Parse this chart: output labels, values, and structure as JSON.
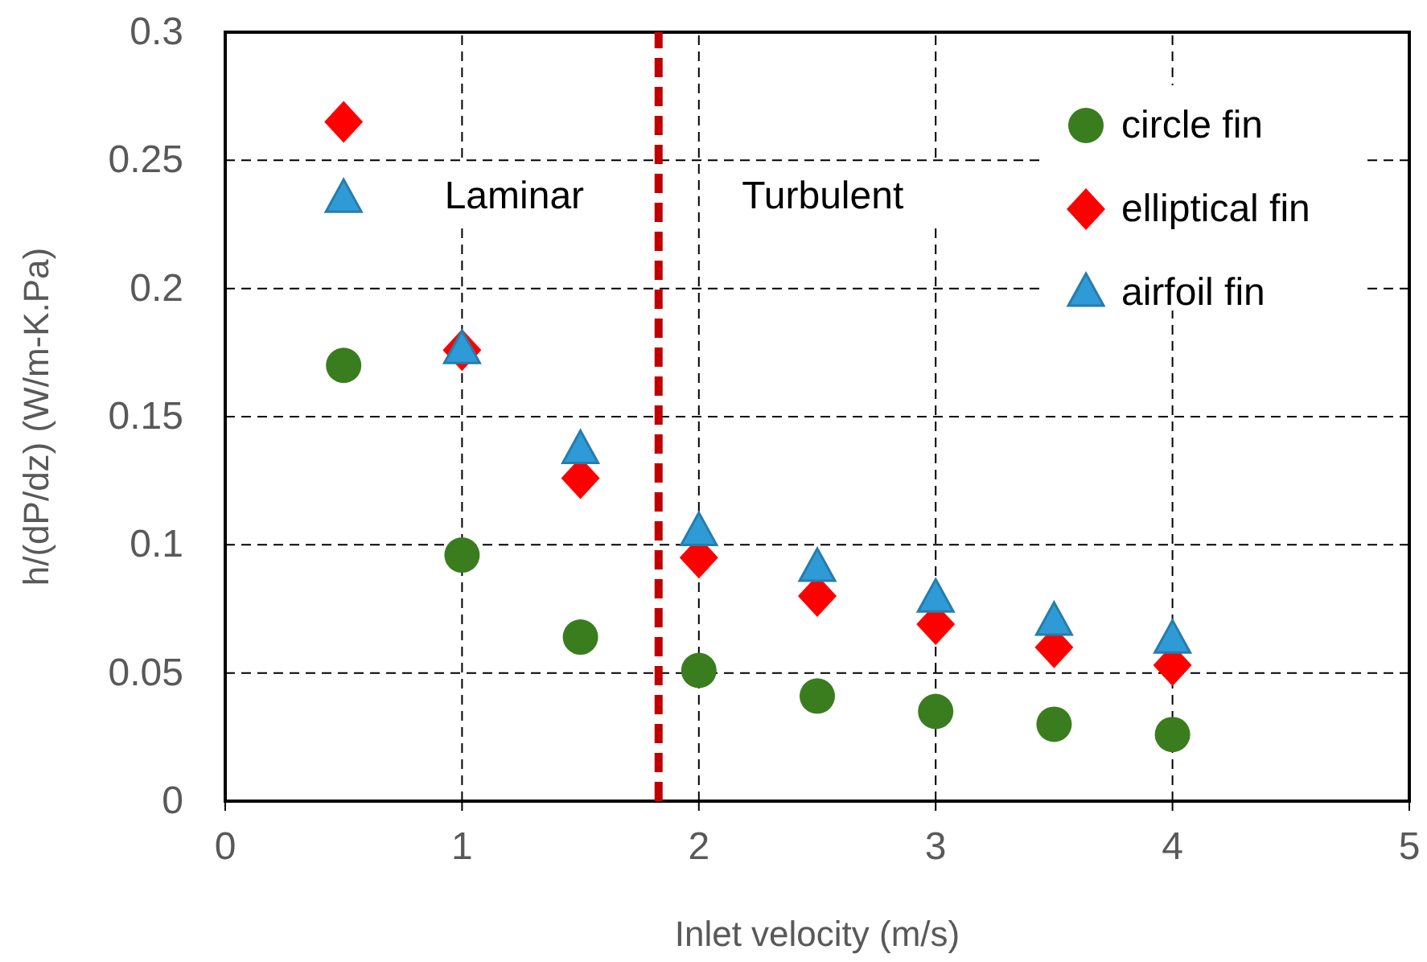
{
  "chart_data": {
    "type": "scatter",
    "xlabel": "Inlet velocity (m/s)",
    "ylabel": "h/(dP/dz) (W/m-K.Pa)",
    "x": [
      0.5,
      1,
      1.5,
      2,
      2.5,
      3,
      3.5,
      4
    ],
    "series": [
      {
        "name": "circle fin",
        "color": "#3a7d1e",
        "marker": "circle",
        "values": [
          0.17,
          0.096,
          0.064,
          0.051,
          0.041,
          0.035,
          0.03,
          0.026
        ]
      },
      {
        "name": "elliptical fin",
        "color": "#ff0000",
        "marker": "diamond",
        "values": [
          0.265,
          0.176,
          0.126,
          0.095,
          0.08,
          0.069,
          0.06,
          0.053
        ]
      },
      {
        "name": "airfoil fin",
        "color": "#2e9bd6",
        "marker": "triangle",
        "values": [
          0.235,
          0.176,
          0.137,
          0.105,
          0.091,
          0.079,
          0.07,
          0.063
        ]
      }
    ],
    "xlim": [
      0,
      5
    ],
    "xticks": [
      0,
      1,
      2,
      3,
      4,
      5
    ],
    "ylim": [
      0,
      0.3
    ],
    "yticks": [
      0,
      {
        "value": 0.05,
        "label": "0.05"
      },
      {
        "value": 0.1,
        "label": "0.1"
      },
      {
        "value": 0.15,
        "label": "0.15"
      },
      {
        "value": 0.2,
        "label": "0.2"
      },
      {
        "value": 0.25,
        "label": "0.25"
      },
      {
        "value": 0.3,
        "label": "0.3"
      }
    ],
    "ref_lines": [
      {
        "axis": "x",
        "value": 1.83,
        "color": "#c00000",
        "line_style": "dashed"
      }
    ],
    "annotations": [
      "Laminar",
      "Turbulent"
    ],
    "grid": true,
    "legend": "top right"
  }
}
